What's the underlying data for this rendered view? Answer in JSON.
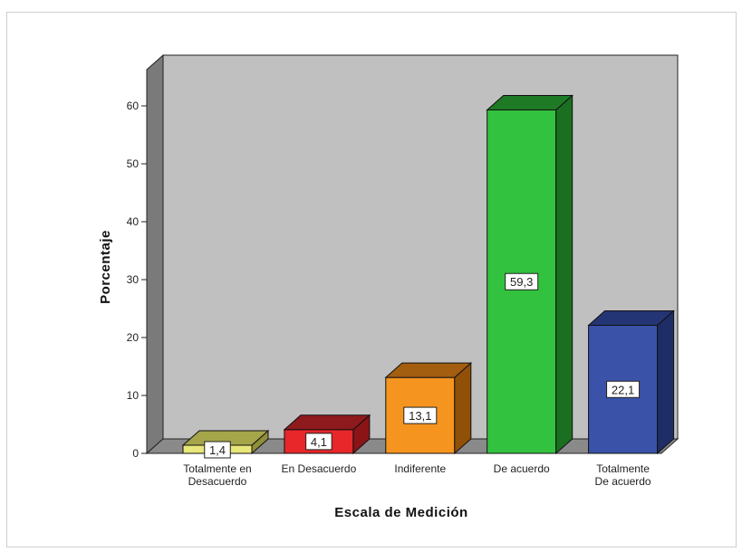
{
  "chart_data": {
    "type": "bar",
    "style": "3d",
    "title": "",
    "xlabel": "Escala de Medición",
    "ylabel": "Porcentaje",
    "ylim": [
      0,
      60
    ],
    "yticks": [
      "0",
      "10",
      "20",
      "30",
      "40",
      "50",
      "60"
    ],
    "grid": false,
    "categories": [
      [
        "Totalmente en",
        "Desacuerdo"
      ],
      [
        "En Desacuerdo"
      ],
      [
        "Indiferente"
      ],
      [
        "De acuerdo"
      ],
      [
        "Totalmente",
        "De acuerdo"
      ]
    ],
    "values": [
      1.4,
      4.1,
      13.1,
      59.3,
      22.1
    ],
    "value_labels": [
      "1,4",
      "4,1",
      "13,1",
      "59,3",
      "22,1"
    ],
    "colors": {
      "plot_back": "#c0c0c0",
      "plot_side": "#7a7a7a",
      "plot_floor": "#8a8a8a",
      "bars": [
        {
          "front": "#e8e77a",
          "top": "#a5a54a",
          "side": "#8f8f3a"
        },
        {
          "front": "#e8272a",
          "top": "#8e1a1d",
          "side": "#8a1416"
        },
        {
          "front": "#f5951f",
          "top": "#a35e10",
          "side": "#915008"
        },
        {
          "front": "#33c23f",
          "top": "#1e7a25",
          "side": "#1b6f21"
        },
        {
          "front": "#3a52a8",
          "top": "#233575",
          "side": "#1e2d66"
        }
      ]
    }
  }
}
